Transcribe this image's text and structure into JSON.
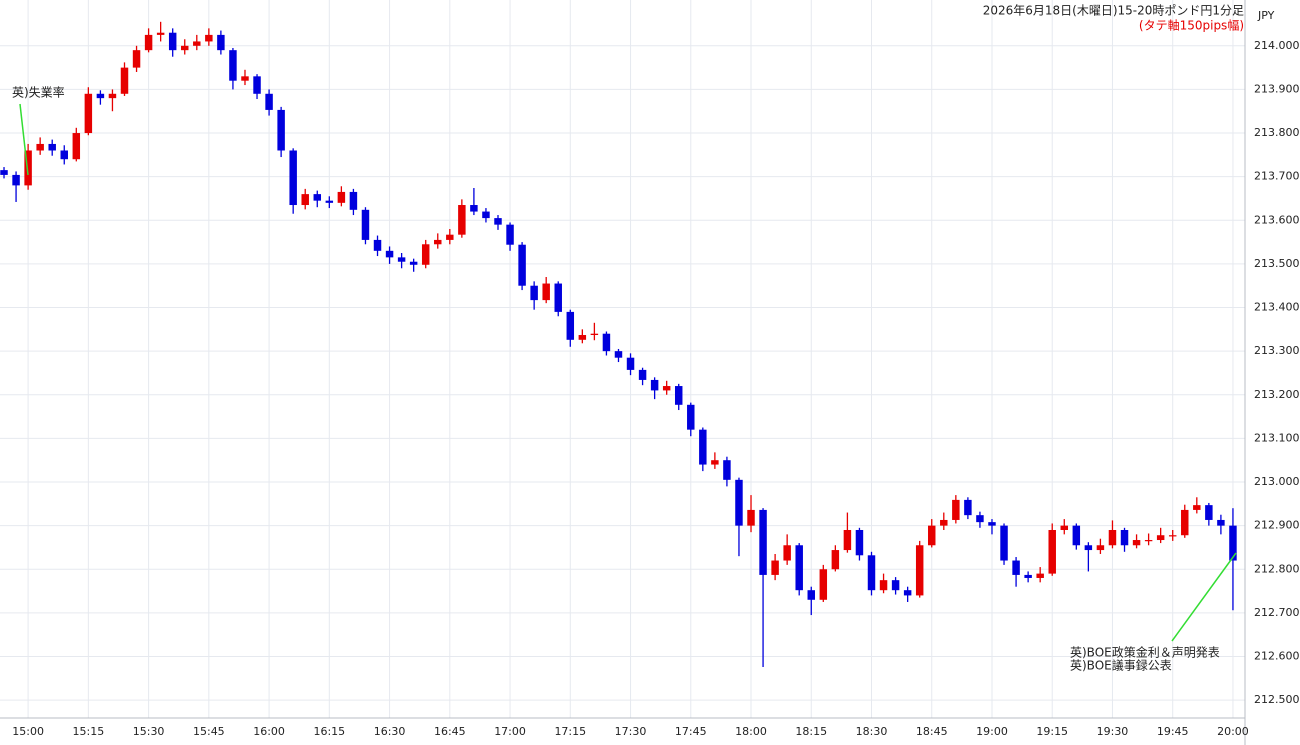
{
  "chart_data": {
    "type": "candlestick",
    "title": "2026年6月18日(木曜日)15-20時ポンド円1分足",
    "subtitle": "(タテ軸150pips幅)",
    "y_axis_label": "JPY",
    "annotations": [
      "英)失業率",
      "英)BOE政策金利＆声明発表",
      "英)BOE議事録公表"
    ],
    "up_color": "#e60000",
    "down_color": "#0000dd",
    "annotation_color": "#33dd33",
    "grid": true,
    "xlim": [
      "14:53",
      "20:03"
    ],
    "xticks": [
      "15:00",
      "15:15",
      "15:30",
      "15:45",
      "16:00",
      "16:15",
      "16:30",
      "16:45",
      "17:00",
      "17:15",
      "17:30",
      "17:45",
      "18:00",
      "18:15",
      "18:30",
      "18:45",
      "19:00",
      "19:15",
      "19:30",
      "19:45",
      "20:00"
    ],
    "ylim": [
      212.459,
      214.105
    ],
    "yticks": [
      {
        "value": 212.5,
        "label": "212.500"
      },
      {
        "value": 212.6,
        "label": "212.600"
      },
      {
        "value": 212.7,
        "label": "212.700"
      },
      {
        "value": 212.8,
        "label": "212.800"
      },
      {
        "value": 212.9,
        "label": "212.900"
      },
      {
        "value": 213,
        "label": "213.000"
      },
      {
        "value": 213.1,
        "label": "213.100"
      },
      {
        "value": 213.2,
        "label": "213.200"
      },
      {
        "value": 213.3,
        "label": "213.300"
      },
      {
        "value": 213.4,
        "label": "213.400"
      },
      {
        "value": 213.5,
        "label": "213.500"
      },
      {
        "value": 213.6,
        "label": "213.600"
      },
      {
        "value": 213.7,
        "label": "213.700"
      },
      {
        "value": 213.8,
        "label": "213.800"
      },
      {
        "value": 213.9,
        "label": "213.900"
      },
      {
        "value": 214,
        "label": "214.000"
      }
    ],
    "x": [
      "14:54",
      "14:57",
      "15:00",
      "15:03",
      "15:06",
      "15:09",
      "15:12",
      "15:15",
      "15:18",
      "15:21",
      "15:24",
      "15:27",
      "15:30",
      "15:33",
      "15:36",
      "15:39",
      "15:42",
      "15:45",
      "15:48",
      "15:51",
      "15:54",
      "15:57",
      "16:00",
      "16:03",
      "16:06",
      "16:09",
      "16:12",
      "16:15",
      "16:18",
      "16:21",
      "16:24",
      "16:27",
      "16:30",
      "16:33",
      "16:36",
      "16:39",
      "16:42",
      "16:45",
      "16:48",
      "16:51",
      "16:54",
      "16:57",
      "17:00",
      "17:03",
      "17:06",
      "17:09",
      "17:12",
      "17:15",
      "17:18",
      "17:21",
      "17:24",
      "17:27",
      "17:30",
      "17:33",
      "17:36",
      "17:39",
      "17:42",
      "17:45",
      "17:48",
      "17:51",
      "17:54",
      "17:57",
      "18:00",
      "18:03",
      "18:06",
      "18:09",
      "18:12",
      "18:15",
      "18:18",
      "18:21",
      "18:24",
      "18:27",
      "18:30",
      "18:33",
      "18:36",
      "18:39",
      "18:42",
      "18:45",
      "18:48",
      "18:51",
      "18:54",
      "18:57",
      "19:00",
      "19:03",
      "19:06",
      "19:09",
      "19:12",
      "19:15",
      "19:18",
      "19:21",
      "19:24",
      "19:27",
      "19:30",
      "19:33",
      "19:36",
      "19:39",
      "19:42",
      "19:45",
      "19:48",
      "19:51",
      "19:54",
      "19:57",
      "20:00"
    ],
    "open": [
      213.715,
      213.704,
      213.68,
      213.76,
      213.775,
      213.76,
      213.74,
      213.8,
      213.89,
      213.88,
      213.89,
      213.95,
      213.99,
      214.025,
      214.03,
      213.99,
      214.0,
      214.01,
      214.025,
      213.99,
      213.92,
      213.93,
      213.89,
      213.853,
      213.76,
      213.635,
      213.66,
      213.645,
      213.64,
      213.665,
      213.624,
      213.555,
      213.53,
      213.515,
      213.505,
      213.498,
      213.545,
      213.555,
      213.567,
      213.635,
      213.62,
      213.605,
      213.59,
      213.544,
      213.45,
      213.417,
      213.455,
      213.39,
      213.326,
      213.337,
      213.34,
      213.3,
      213.285,
      213.257,
      213.234,
      213.21,
      213.22,
      213.177,
      213.12,
      213.04,
      213.05,
      213.005,
      212.9,
      212.936,
      212.787,
      212.82,
      212.855,
      212.752,
      212.73,
      212.8,
      212.844,
      212.89,
      212.832,
      212.752,
      212.775,
      212.752,
      212.74,
      212.855,
      212.9,
      212.913,
      212.959,
      212.924,
      212.908,
      212.9,
      212.82,
      212.787,
      212.78,
      212.79,
      212.89,
      212.9,
      212.855,
      212.844,
      212.855,
      212.89,
      212.855,
      212.867,
      212.867,
      212.878,
      212.878,
      212.936,
      212.947,
      212.913,
      212.9
    ],
    "high": [
      213.722,
      213.712,
      213.775,
      213.79,
      213.785,
      213.772,
      213.812,
      213.905,
      213.898,
      213.9,
      213.962,
      214.0,
      214.04,
      214.055,
      214.04,
      214.015,
      214.025,
      214.04,
      214.035,
      213.995,
      213.945,
      213.935,
      213.9,
      213.86,
      213.765,
      213.672,
      213.668,
      213.655,
      213.678,
      213.672,
      213.63,
      213.565,
      213.54,
      213.525,
      213.512,
      213.555,
      213.57,
      213.58,
      213.648,
      213.674,
      213.628,
      213.612,
      213.595,
      213.55,
      213.46,
      213.47,
      213.46,
      213.395,
      213.35,
      213.365,
      213.345,
      213.305,
      213.295,
      213.262,
      213.24,
      213.232,
      213.225,
      213.182,
      213.125,
      213.068,
      213.058,
      213.01,
      212.97,
      212.94,
      212.835,
      212.88,
      212.86,
      212.76,
      212.81,
      212.855,
      212.93,
      212.895,
      212.84,
      212.79,
      212.782,
      212.76,
      212.865,
      212.915,
      212.93,
      212.97,
      212.965,
      212.932,
      212.915,
      212.905,
      212.828,
      212.795,
      212.805,
      212.905,
      212.915,
      212.905,
      212.862,
      212.87,
      212.912,
      212.895,
      212.88,
      212.882,
      212.895,
      212.89,
      212.948,
      212.965,
      212.952,
      212.925,
      212.94
    ],
    "low": [
      213.696,
      213.642,
      213.67,
      213.75,
      213.748,
      213.728,
      213.735,
      213.795,
      213.865,
      213.85,
      213.885,
      213.94,
      213.985,
      214.01,
      213.975,
      213.98,
      213.99,
      214.0,
      213.98,
      213.9,
      213.91,
      213.878,
      213.84,
      213.745,
      213.615,
      213.625,
      213.63,
      213.628,
      213.632,
      213.612,
      213.545,
      213.518,
      213.5,
      213.49,
      213.482,
      213.49,
      213.535,
      213.545,
      213.56,
      213.612,
      213.595,
      213.578,
      213.53,
      213.44,
      213.395,
      213.41,
      213.38,
      213.31,
      213.318,
      213.325,
      213.29,
      213.275,
      213.245,
      213.222,
      213.19,
      213.2,
      213.165,
      213.105,
      213.025,
      213.03,
      212.99,
      212.83,
      212.885,
      212.576,
      212.775,
      212.81,
      212.74,
      212.695,
      212.725,
      212.795,
      212.838,
      212.82,
      212.74,
      212.745,
      212.742,
      212.725,
      212.735,
      212.85,
      212.89,
      212.905,
      212.915,
      212.895,
      212.88,
      212.81,
      212.76,
      212.77,
      212.77,
      212.785,
      212.88,
      212.845,
      212.795,
      212.835,
      212.848,
      212.84,
      212.848,
      212.855,
      212.86,
      212.865,
      212.872,
      212.928,
      212.9,
      212.88,
      212.706
    ],
    "close": [
      213.704,
      213.68,
      213.76,
      213.775,
      213.76,
      213.74,
      213.8,
      213.89,
      213.88,
      213.89,
      213.95,
      213.99,
      214.025,
      214.03,
      213.99,
      214.0,
      214.01,
      214.025,
      213.99,
      213.92,
      213.93,
      213.89,
      213.853,
      213.76,
      213.635,
      213.66,
      213.645,
      213.64,
      213.665,
      213.624,
      213.555,
      213.53,
      213.515,
      213.505,
      213.498,
      213.545,
      213.555,
      213.567,
      213.635,
      213.62,
      213.605,
      213.59,
      213.544,
      213.45,
      213.417,
      213.455,
      213.39,
      213.326,
      213.337,
      213.34,
      213.3,
      213.285,
      213.257,
      213.234,
      213.21,
      213.22,
      213.177,
      213.12,
      213.04,
      213.05,
      213.005,
      212.9,
      212.936,
      212.787,
      212.82,
      212.855,
      212.752,
      212.73,
      212.8,
      212.844,
      212.89,
      212.832,
      212.752,
      212.775,
      212.752,
      212.74,
      212.855,
      212.9,
      212.913,
      212.959,
      212.924,
      212.908,
      212.9,
      212.82,
      212.787,
      212.78,
      212.79,
      212.89,
      212.9,
      212.855,
      212.844,
      212.855,
      212.89,
      212.855,
      212.867,
      212.867,
      212.878,
      212.878,
      212.936,
      212.947,
      212.913,
      212.9,
      212.82
    ]
  }
}
